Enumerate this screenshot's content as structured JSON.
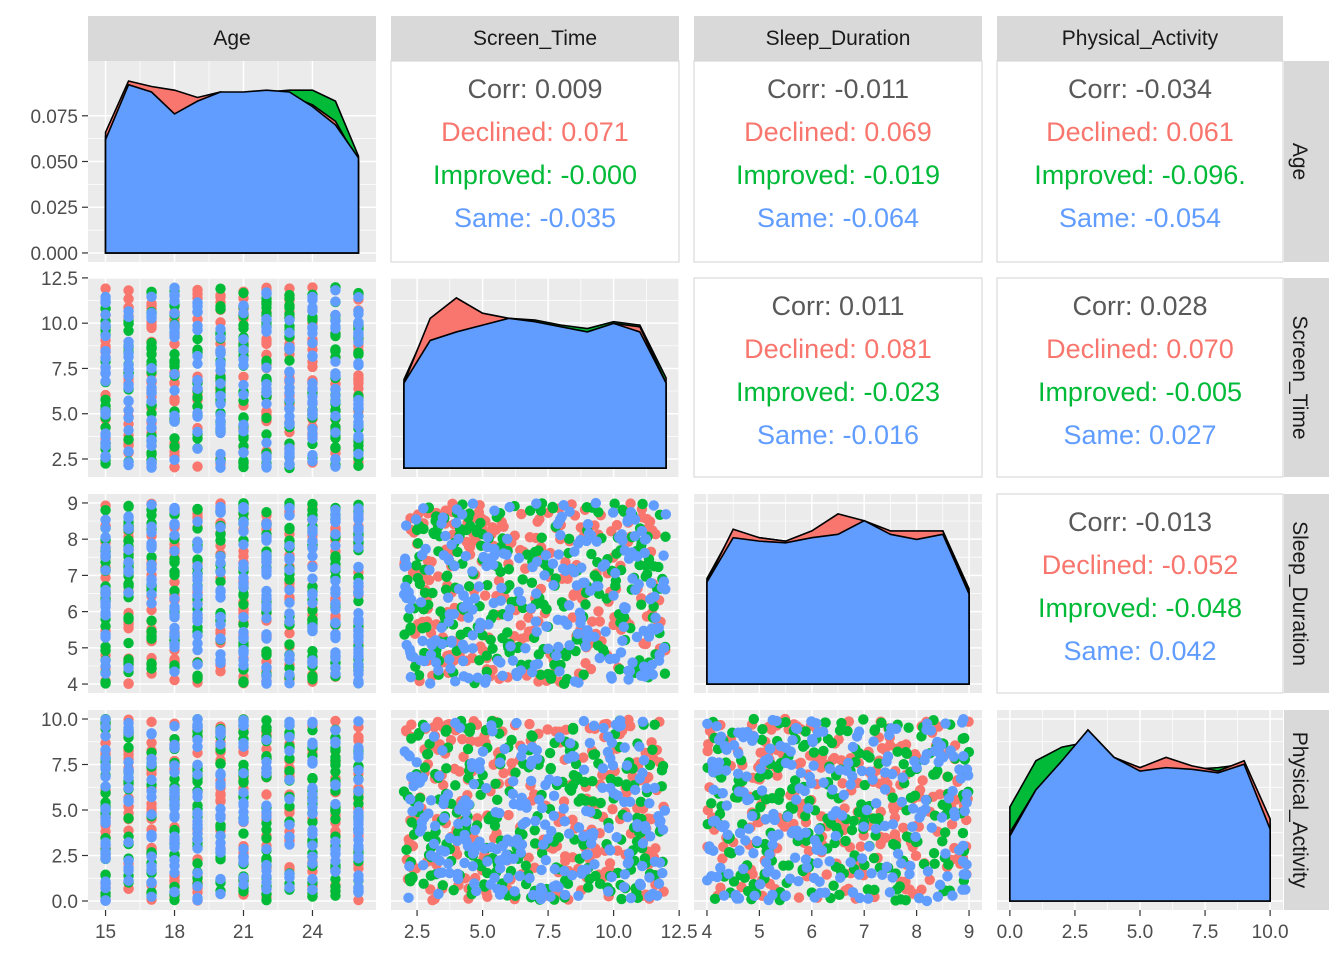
{
  "variables": [
    "Age",
    "Screen_Time",
    "Sleep_Duration",
    "Physical_Activity"
  ],
  "groups": [
    {
      "name": "Declined",
      "color": "#F8766D"
    },
    {
      "name": "Improved",
      "color": "#00BA38"
    },
    {
      "name": "Same",
      "color": "#619CFF"
    }
  ],
  "colors": {
    "panel_bg": "#EBEBEB",
    "grid": "#FFFFFF",
    "strip_bg": "#D9D9D9",
    "corr_overall": "#595959",
    "outline": "#000000"
  },
  "correlations": [
    {
      "row": "Age",
      "col": "Screen_Time",
      "corr": "Corr: 0.009",
      "Declined": "Declined: 0.071",
      "Improved": "Improved: -0.000",
      "Same": "Same: -0.035"
    },
    {
      "row": "Age",
      "col": "Sleep_Duration",
      "corr": "Corr: -0.011",
      "Declined": "Declined: 0.069",
      "Improved": "Improved: -0.019",
      "Same": "Same: -0.064"
    },
    {
      "row": "Age",
      "col": "Physical_Activity",
      "corr": "Corr: -0.034",
      "Declined": "Declined: 0.061",
      "Improved": "Improved: -0.096.",
      "Same": "Same: -0.054"
    },
    {
      "row": "Screen_Time",
      "col": "Sleep_Duration",
      "corr": "Corr: 0.011",
      "Declined": "Declined: 0.081",
      "Improved": "Improved: -0.023",
      "Same": "Same: -0.016"
    },
    {
      "row": "Screen_Time",
      "col": "Physical_Activity",
      "corr": "Corr: 0.028",
      "Declined": "Declined: 0.070",
      "Improved": "Improved: -0.005",
      "Same": "Same: 0.027"
    },
    {
      "row": "Sleep_Duration",
      "col": "Physical_Activity",
      "corr": "Corr: -0.013",
      "Declined": "Declined: -0.052",
      "Improved": "Improved: -0.048",
      "Same": "Same: 0.042"
    }
  ],
  "axes": {
    "Age": {
      "range": [
        14.8,
        26.2
      ],
      "ticks": [
        15,
        18,
        21,
        24
      ],
      "tick_labels": [
        "15",
        "18",
        "21",
        "24"
      ],
      "values": [
        15,
        16,
        17,
        18,
        19,
        20,
        21,
        22,
        23,
        24,
        25,
        26
      ]
    },
    "Screen_Time": {
      "range": [
        2.0,
        12.0
      ],
      "ticks": [
        2.5,
        5.0,
        7.5,
        10.0,
        12.5
      ],
      "tick_labels": [
        "2.5",
        "5.0",
        "7.5",
        "10.0",
        "12.5"
      ]
    },
    "Sleep_Duration": {
      "range": [
        4.0,
        9.0
      ],
      "ticks": [
        4,
        5,
        6,
        7,
        8,
        9
      ],
      "tick_labels": [
        "4",
        "5",
        "6",
        "7",
        "8",
        "9"
      ]
    },
    "Physical_Activity": {
      "range": [
        0.0,
        10.0
      ],
      "ticks": [
        0.0,
        2.5,
        5.0,
        7.5,
        10.0
      ],
      "tick_labels": [
        "0.0",
        "2.5",
        "5.0",
        "7.5",
        "10.0"
      ]
    }
  },
  "density_axis": {
    "ticks": [
      0.0,
      0.025,
      0.05,
      0.075
    ],
    "tick_labels": [
      "0.000",
      "0.025",
      "0.050",
      "0.075"
    ],
    "range": [
      0,
      0.1
    ]
  },
  "chart_data": {
    "type": "scatter",
    "subtype": "pairs-plot",
    "legend": "none",
    "grid": true,
    "diag_densities": {
      "Age": {
        "x": [
          15,
          16,
          17,
          18,
          19,
          20,
          21,
          22,
          23,
          24,
          25,
          26
        ],
        "Declined": [
          0.066,
          0.094,
          0.091,
          0.089,
          0.085,
          0.088,
          0.086,
          0.087,
          0.086,
          0.081,
          0.072,
          0.05
        ],
        "Improved": [
          0.064,
          0.092,
          0.087,
          0.076,
          0.076,
          0.082,
          0.087,
          0.088,
          0.089,
          0.089,
          0.083,
          0.053
        ],
        "Same": [
          0.062,
          0.092,
          0.088,
          0.076,
          0.083,
          0.088,
          0.088,
          0.089,
          0.088,
          0.08,
          0.07,
          0.052
        ]
      },
      "Screen_Time": {
        "x": [
          2,
          3,
          4,
          5,
          6,
          7,
          8,
          9,
          10,
          11,
          12
        ],
        "Declined": [
          0.5,
          0.88,
          1.0,
          0.91,
          0.88,
          0.86,
          0.82,
          0.8,
          0.85,
          0.83,
          0.5
        ],
        "Improved": [
          0.52,
          0.86,
          0.93,
          0.89,
          0.88,
          0.87,
          0.84,
          0.82,
          0.86,
          0.84,
          0.53
        ],
        "Same": [
          0.5,
          0.75,
          0.8,
          0.84,
          0.88,
          0.86,
          0.83,
          0.8,
          0.85,
          0.8,
          0.5
        ]
      },
      "Sleep_Duration": {
        "x": [
          4,
          4.5,
          5,
          5.5,
          6,
          6.5,
          7,
          7.5,
          8,
          8.5,
          9
        ],
        "Declined": [
          0.6,
          0.91,
          0.86,
          0.84,
          0.9,
          1.0,
          0.96,
          0.9,
          0.9,
          0.9,
          0.54
        ],
        "Improved": [
          0.62,
          0.9,
          0.86,
          0.84,
          0.86,
          0.9,
          0.94,
          0.88,
          0.88,
          0.9,
          0.56
        ],
        "Same": [
          0.6,
          0.86,
          0.84,
          0.83,
          0.86,
          0.88,
          0.96,
          0.88,
          0.85,
          0.88,
          0.53
        ]
      },
      "Physical_Activity": {
        "x": [
          0,
          1,
          2,
          3,
          4,
          5,
          6,
          7,
          8,
          9,
          10
        ],
        "Declined": [
          0.4,
          0.65,
          0.8,
          1.0,
          0.84,
          0.78,
          0.84,
          0.79,
          0.76,
          0.82,
          0.48
        ],
        "Improved": [
          0.55,
          0.82,
          0.9,
          0.93,
          0.82,
          0.78,
          0.8,
          0.77,
          0.78,
          0.8,
          0.45
        ],
        "Same": [
          0.38,
          0.65,
          0.82,
          1.0,
          0.84,
          0.76,
          0.78,
          0.77,
          0.75,
          0.8,
          0.42
        ]
      }
    },
    "scatter_points_per_group": 240,
    "note": "Scatter panels show uniformly spread points across the full ranges of each variable pair; Age takes integer values 15-26."
  }
}
